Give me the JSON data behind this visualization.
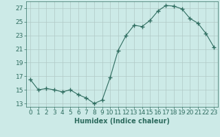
{
  "x": [
    0,
    1,
    2,
    3,
    4,
    5,
    6,
    7,
    8,
    9,
    10,
    11,
    12,
    13,
    14,
    15,
    16,
    17,
    18,
    19,
    20,
    21,
    22,
    23
  ],
  "y": [
    16.5,
    15.0,
    15.2,
    15.0,
    14.7,
    15.0,
    14.3,
    13.8,
    13.0,
    13.5,
    16.8,
    20.8,
    23.0,
    24.5,
    24.3,
    25.2,
    26.6,
    27.4,
    27.3,
    26.9,
    25.5,
    24.8,
    23.3,
    21.3
  ],
  "xlabel": "Humidex (Indice chaleur)",
  "ylim": [
    12.5,
    28
  ],
  "xlim": [
    -0.5,
    23.5
  ],
  "yticks": [
    13,
    15,
    17,
    19,
    21,
    23,
    25,
    27
  ],
  "xticks": [
    0,
    1,
    2,
    3,
    4,
    5,
    6,
    7,
    8,
    9,
    10,
    11,
    12,
    13,
    14,
    15,
    16,
    17,
    18,
    19,
    20,
    21,
    22,
    23
  ],
  "line_color": "#2d6b5e",
  "marker": "+",
  "marker_size": 4,
  "bg_color": "#cceae7",
  "grid_color": "#b0c8c5",
  "tick_fontsize": 6.5,
  "xlabel_fontsize": 7
}
